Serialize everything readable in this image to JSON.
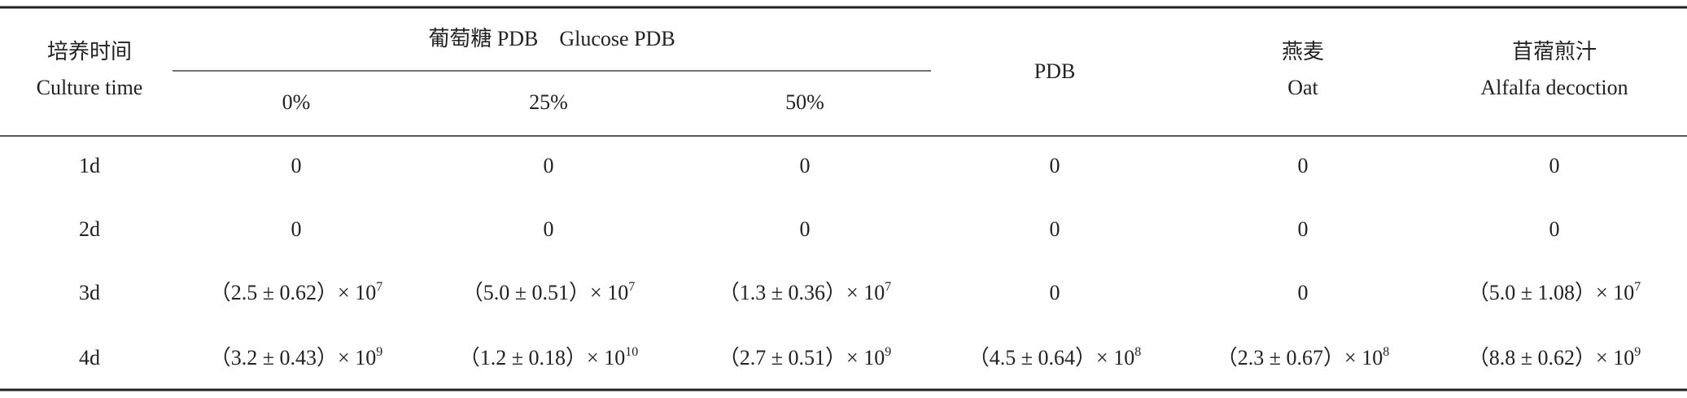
{
  "table": {
    "header": {
      "time": {
        "zh": "培养时间",
        "en": "Culture time"
      },
      "glucose": {
        "title": "葡萄糖 PDB　Glucose PDB",
        "sub": [
          "0%",
          "25%",
          "50%"
        ]
      },
      "pdb": "PDB",
      "oat": {
        "zh": "燕麦",
        "en": "Oat"
      },
      "alfalfa": {
        "zh": "苜蓿煎汁",
        "en": "Alfalfa decoction"
      }
    },
    "rows": [
      {
        "label": "1d",
        "cells": [
          {
            "text": "0"
          },
          {
            "text": "0"
          },
          {
            "text": "0"
          },
          {
            "text": "0"
          },
          {
            "text": "0"
          },
          {
            "text": "0"
          }
        ]
      },
      {
        "label": "2d",
        "cells": [
          {
            "text": "0"
          },
          {
            "text": "0"
          },
          {
            "text": "0"
          },
          {
            "text": "0"
          },
          {
            "text": "0"
          },
          {
            "text": "0"
          }
        ]
      },
      {
        "label": "3d",
        "cells": [
          {
            "text": "（2.5 ± 0.62）× 10",
            "sup": "7"
          },
          {
            "text": "（5.0 ± 0.51）× 10",
            "sup": "7"
          },
          {
            "text": "（1.3 ± 0.36）× 10",
            "sup": "7"
          },
          {
            "text": "0"
          },
          {
            "text": "0"
          },
          {
            "text": "（5.0 ± 1.08）× 10",
            "sup": "7"
          }
        ]
      },
      {
        "label": "4d",
        "cells": [
          {
            "text": "（3.2 ± 0.43）× 10",
            "sup": "9"
          },
          {
            "text": "（1.2 ± 0.18）× 10",
            "sup": "10"
          },
          {
            "text": "（2.7 ± 0.51）× 10",
            "sup": "9"
          },
          {
            "text": "（4.5 ± 0.64）× 10",
            "sup": "8"
          },
          {
            "text": "（2.3 ± 0.67）× 10",
            "sup": "8"
          },
          {
            "text": "（8.8 ± 0.62）× 10",
            "sup": "9"
          }
        ]
      }
    ]
  }
}
